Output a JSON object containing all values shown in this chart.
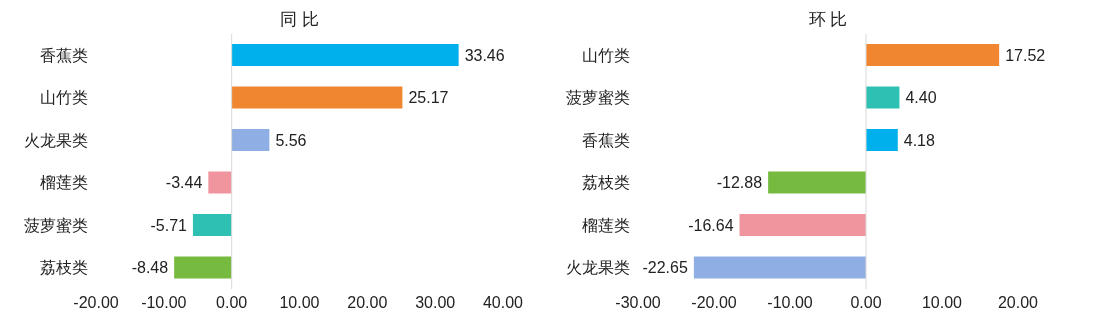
{
  "chart_data": [
    {
      "type": "bar",
      "orientation": "horizontal",
      "title": "同 比",
      "categories": [
        "香蕉类",
        "山竹类",
        "火龙果类",
        "榴莲类",
        "菠萝蜜类",
        "荔枝类"
      ],
      "values": [
        33.46,
        25.17,
        5.56,
        -3.44,
        -5.71,
        -8.48
      ],
      "colors": [
        "#00b0ec",
        "#f0862f",
        "#8faee3",
        "#f0959e",
        "#2ec1b3",
        "#76bb40"
      ],
      "value_labels": [
        "33.46",
        "25.17",
        "5.56",
        "-3.44",
        "-5.71",
        "-8.48"
      ],
      "xlim": [
        -20,
        40
      ],
      "xticks": [
        {
          "value": -20,
          "label": "-20.00"
        },
        {
          "value": -10,
          "label": "-10.00"
        },
        {
          "value": 0,
          "label": "0.00"
        },
        {
          "value": 10,
          "label": "10.00"
        },
        {
          "value": 20,
          "label": "20.00"
        },
        {
          "value": 30,
          "label": "30.00"
        },
        {
          "value": 40,
          "label": "40.00"
        }
      ],
      "ref_lines": [
        {
          "axis": "x",
          "value": 0,
          "color": "#d9d9d9"
        }
      ]
    },
    {
      "type": "bar",
      "orientation": "horizontal",
      "title": "环 比",
      "categories": [
        "山竹类",
        "菠萝蜜类",
        "香蕉类",
        "荔枝类",
        "榴莲类",
        "火龙果类"
      ],
      "values": [
        17.52,
        4.4,
        4.18,
        -12.88,
        -16.64,
        -22.65
      ],
      "colors": [
        "#f0862f",
        "#2ec1b3",
        "#00b0ec",
        "#76bb40",
        "#f0959e",
        "#8faee3"
      ],
      "value_labels": [
        "17.52",
        "4.40",
        "4.18",
        "-12.88",
        "-16.64",
        "-22.65"
      ],
      "xlim": [
        -30,
        20
      ],
      "xticks": [
        {
          "value": -30,
          "label": "-30.00"
        },
        {
          "value": -20,
          "label": "-20.00"
        },
        {
          "value": -10,
          "label": "-10.00"
        },
        {
          "value": 0,
          "label": "0.00"
        },
        {
          "value": 10,
          "label": "10.00"
        },
        {
          "value": 20,
          "label": "20.00"
        }
      ],
      "ref_lines": [
        {
          "axis": "x",
          "value": 0,
          "color": "#d9d9d9"
        }
      ]
    }
  ]
}
